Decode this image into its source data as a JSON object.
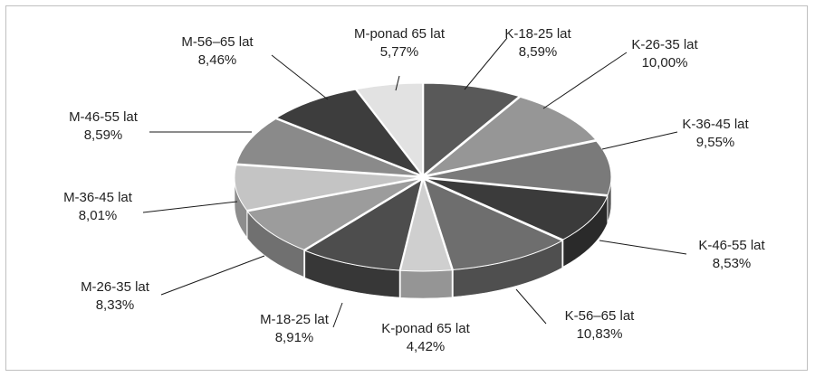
{
  "chart_data": {
    "type": "pie",
    "title": "",
    "style": "3d-exploded-grayscale",
    "categories": [
      "K-18-25 lat",
      "K-26-35 lat",
      "K-36-45 lat",
      "K-46-55 lat",
      "K-56–65 lat",
      "K-ponad 65 lat",
      "M-18-25 lat",
      "M-26-35 lat",
      "M-36-45 lat",
      "M-46-55 lat",
      "M-56–65 lat",
      "M-ponad 65 lat"
    ],
    "values": [
      8.59,
      10.0,
      9.55,
      8.53,
      10.83,
      4.42,
      8.91,
      8.33,
      8.01,
      8.59,
      8.46,
      5.77
    ],
    "value_labels": [
      "8,59%",
      "10,00%",
      "9,55%",
      "8,53%",
      "10,83%",
      "4,42%",
      "8,91%",
      "8,33%",
      "8,01%",
      "8,59%",
      "8,46%",
      "5,77%"
    ],
    "colors": [
      "#595959",
      "#969696",
      "#7a7a7a",
      "#3b3b3b",
      "#6e6e6e",
      "#cfcfcf",
      "#4d4d4d",
      "#9c9c9c",
      "#c4c4c4",
      "#8a8a8a",
      "#3d3d3d",
      "#e2e2e2"
    ],
    "legend": "none",
    "grid": false
  }
}
